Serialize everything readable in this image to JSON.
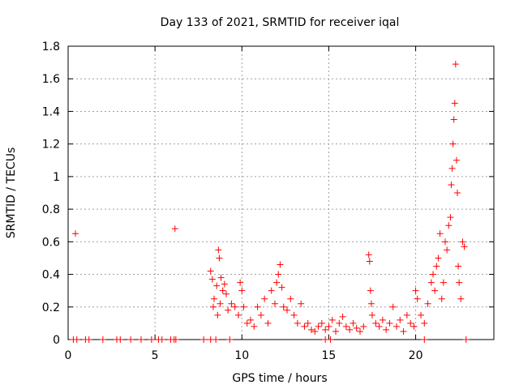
{
  "chart_data": {
    "type": "scatter",
    "title": "Day 133 of 2021, SRMTID for receiver iqal",
    "xlabel": "GPS time / hours",
    "ylabel": "SRMTID / TECUs",
    "xlim": [
      0,
      24.5
    ],
    "ylim": [
      0,
      1.8
    ],
    "x_ticks": [
      0,
      5,
      10,
      15,
      20
    ],
    "y_ticks": [
      0,
      0.2,
      0.4,
      0.6,
      0.8,
      1,
      1.2,
      1.4,
      1.6,
      1.8
    ],
    "x_tick_labels": [
      "0",
      "5",
      "10",
      "15",
      "20"
    ],
    "y_tick_labels": [
      "0",
      "0.2",
      "0.4",
      "0.6",
      "0.8",
      "1",
      "1.2",
      "1.4",
      "1.6",
      "1.8"
    ],
    "grid": true,
    "marker": "+",
    "color": "#ff0000",
    "series": [
      {
        "name": "SRMTID",
        "points": [
          [
            0.42,
            0.65
          ],
          [
            6.15,
            0.68
          ],
          [
            8.2,
            0.42
          ],
          [
            8.3,
            0.37
          ],
          [
            8.4,
            0.25
          ],
          [
            8.55,
            0.33
          ],
          [
            8.65,
            0.55
          ],
          [
            8.7,
            0.5
          ],
          [
            8.8,
            0.38
          ],
          [
            8.9,
            0.3
          ],
          [
            9.0,
            0.34
          ],
          [
            9.1,
            0.28
          ],
          [
            8.35,
            0.2
          ],
          [
            8.6,
            0.15
          ],
          [
            8.75,
            0.22
          ],
          [
            9.2,
            0.18
          ],
          [
            9.4,
            0.22
          ],
          [
            9.6,
            0.2
          ],
          [
            9.8,
            0.15
          ],
          [
            9.9,
            0.35
          ],
          [
            10.0,
            0.3
          ],
          [
            10.1,
            0.2
          ],
          [
            10.3,
            0.1
          ],
          [
            10.5,
            0.12
          ],
          [
            10.7,
            0.08
          ],
          [
            10.9,
            0.2
          ],
          [
            11.1,
            0.15
          ],
          [
            11.3,
            0.25
          ],
          [
            11.5,
            0.1
          ],
          [
            11.7,
            0.3
          ],
          [
            11.9,
            0.22
          ],
          [
            12.0,
            0.35
          ],
          [
            12.1,
            0.4
          ],
          [
            12.2,
            0.46
          ],
          [
            12.3,
            0.32
          ],
          [
            12.4,
            0.2
          ],
          [
            12.6,
            0.18
          ],
          [
            12.8,
            0.25
          ],
          [
            13.0,
            0.15
          ],
          [
            13.2,
            0.1
          ],
          [
            13.4,
            0.22
          ],
          [
            13.6,
            0.08
          ],
          [
            13.8,
            0.1
          ],
          [
            14.0,
            0.06
          ],
          [
            14.2,
            0.05
          ],
          [
            14.4,
            0.08
          ],
          [
            14.6,
            0.1
          ],
          [
            14.8,
            0.06
          ],
          [
            15.0,
            0.08
          ],
          [
            15.2,
            0.12
          ],
          [
            15.4,
            0.05
          ],
          [
            15.6,
            0.1
          ],
          [
            15.8,
            0.14
          ],
          [
            16.0,
            0.08
          ],
          [
            16.2,
            0.06
          ],
          [
            16.4,
            0.1
          ],
          [
            16.6,
            0.07
          ],
          [
            16.8,
            0.05
          ],
          [
            17.0,
            0.08
          ],
          [
            17.3,
            0.52
          ],
          [
            17.35,
            0.48
          ],
          [
            17.4,
            0.3
          ],
          [
            17.45,
            0.22
          ],
          [
            17.5,
            0.15
          ],
          [
            17.7,
            0.1
          ],
          [
            17.9,
            0.08
          ],
          [
            18.1,
            0.12
          ],
          [
            18.3,
            0.06
          ],
          [
            18.5,
            0.1
          ],
          [
            18.7,
            0.2
          ],
          [
            18.9,
            0.08
          ],
          [
            19.1,
            0.12
          ],
          [
            19.3,
            0.05
          ],
          [
            19.5,
            0.15
          ],
          [
            19.7,
            0.1
          ],
          [
            19.9,
            0.08
          ],
          [
            20.0,
            0.3
          ],
          [
            20.1,
            0.25
          ],
          [
            20.3,
            0.15
          ],
          [
            20.5,
            0.1
          ],
          [
            20.7,
            0.22
          ],
          [
            20.9,
            0.35
          ],
          [
            21.0,
            0.4
          ],
          [
            21.1,
            0.3
          ],
          [
            21.2,
            0.45
          ],
          [
            21.3,
            0.5
          ],
          [
            21.4,
            0.65
          ],
          [
            21.5,
            0.25
          ],
          [
            21.6,
            0.35
          ],
          [
            21.7,
            0.6
          ],
          [
            21.8,
            0.55
          ],
          [
            21.9,
            0.7
          ],
          [
            22.0,
            0.75
          ],
          [
            22.05,
            0.95
          ],
          [
            22.1,
            1.05
          ],
          [
            22.15,
            1.2
          ],
          [
            22.2,
            1.35
          ],
          [
            22.25,
            1.45
          ],
          [
            22.3,
            1.69
          ],
          [
            22.35,
            1.1
          ],
          [
            22.4,
            0.9
          ],
          [
            22.45,
            0.45
          ],
          [
            22.5,
            0.35
          ],
          [
            22.6,
            0.25
          ],
          [
            22.7,
            0.6
          ],
          [
            22.8,
            0.57
          ],
          [
            0.3,
            0.0
          ],
          [
            0.5,
            0.0
          ],
          [
            1.0,
            0.0
          ],
          [
            1.2,
            0.0
          ],
          [
            2.0,
            0.0
          ],
          [
            2.8,
            0.0
          ],
          [
            3.0,
            0.0
          ],
          [
            3.6,
            0.0
          ],
          [
            4.2,
            0.0
          ],
          [
            4.8,
            0.0
          ],
          [
            5.2,
            0.0
          ],
          [
            5.4,
            0.0
          ],
          [
            5.9,
            0.0
          ],
          [
            6.1,
            0.0
          ],
          [
            6.2,
            0.0
          ],
          [
            7.8,
            0.0
          ],
          [
            8.2,
            0.0
          ],
          [
            8.5,
            0.0
          ],
          [
            9.3,
            0.0
          ],
          [
            14.8,
            0.0
          ],
          [
            15.1,
            0.0
          ],
          [
            20.5,
            0.0
          ],
          [
            22.9,
            0.0
          ]
        ]
      }
    ]
  }
}
